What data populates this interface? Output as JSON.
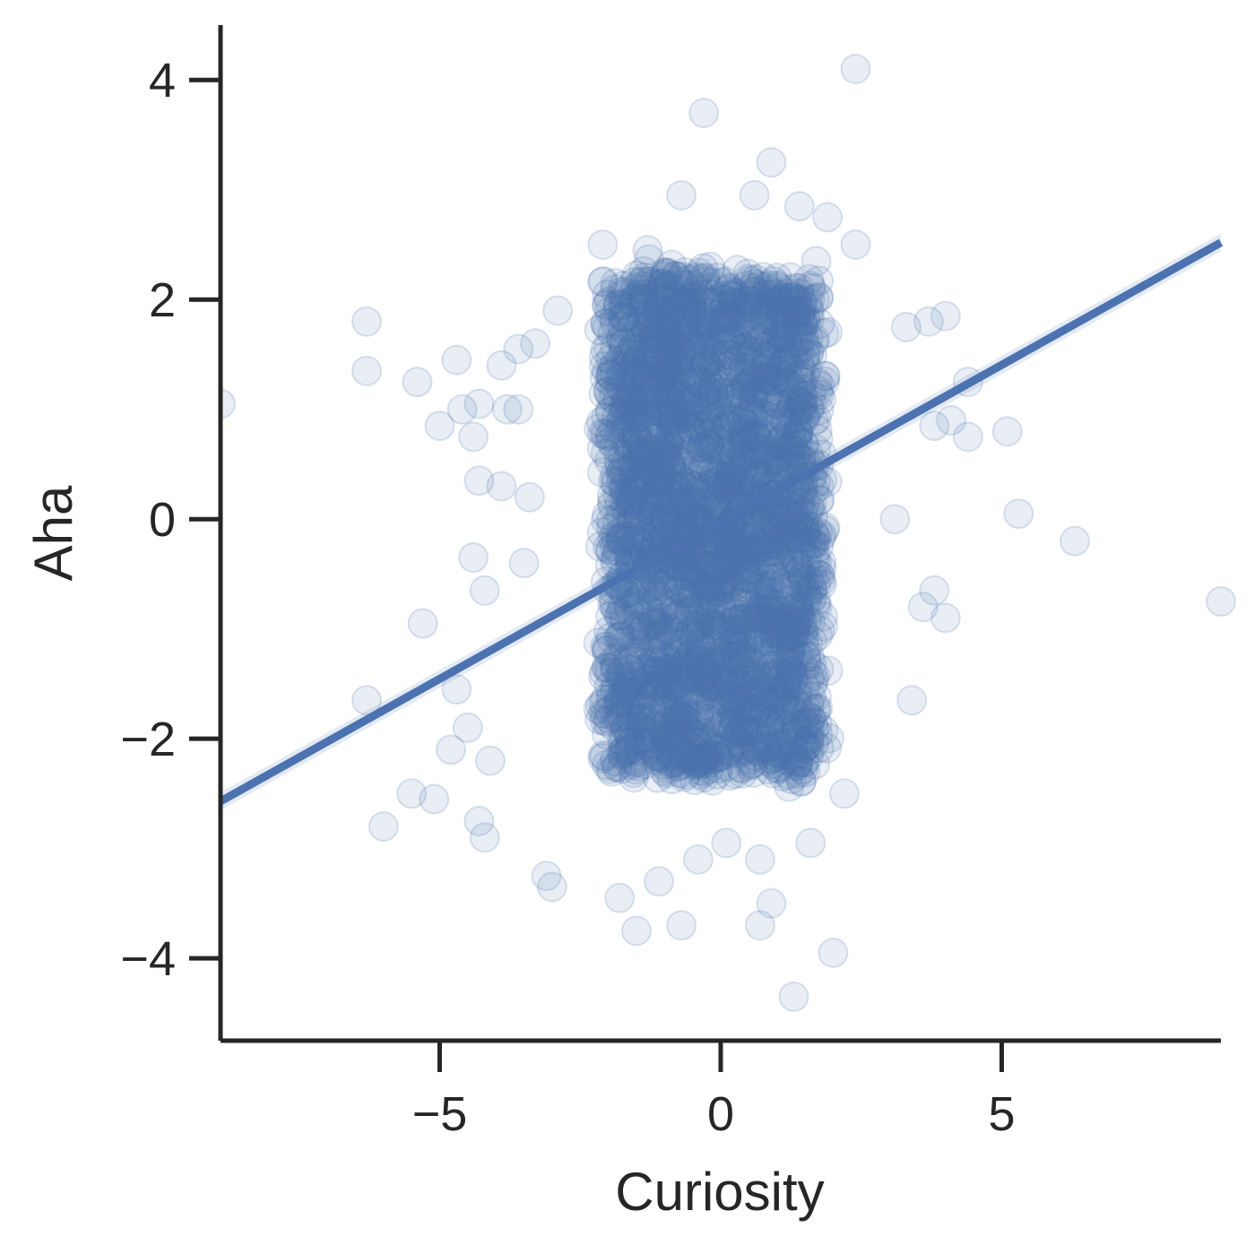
{
  "chart_data": {
    "type": "scatter",
    "title": "",
    "xlabel": "Curiosity",
    "ylabel": "Aha",
    "xlim": [
      -8.9,
      8.9
    ],
    "ylim": [
      -4.75,
      4.5
    ],
    "xticks": [
      -5,
      0,
      5
    ],
    "xtick_labels": [
      "−5",
      "0",
      "5"
    ],
    "yticks": [
      -4,
      -2,
      0,
      2,
      4
    ],
    "ytick_labels": [
      "−4",
      "−2",
      "0",
      "2",
      "4"
    ],
    "grid": false,
    "legend": "none",
    "colors": {
      "points": "#4c72b0",
      "line": "#4c72b0",
      "axes": "#262626"
    },
    "point_alpha": 0.12,
    "dense_cloud": {
      "x_center": -0.15,
      "x_half_width": 2.1,
      "y_range": [
        -2.3,
        2.2
      ],
      "approx_count": 3000
    },
    "series": [
      {
        "kind": "points",
        "sample_points": [
          [
            2.4,
            4.1
          ],
          [
            -0.3,
            3.7
          ],
          [
            0.9,
            3.25
          ],
          [
            -0.7,
            2.95
          ],
          [
            0.6,
            2.95
          ],
          [
            1.4,
            2.85
          ],
          [
            1.9,
            2.75
          ],
          [
            -2.1,
            2.5
          ],
          [
            -1.3,
            2.45
          ],
          [
            2.4,
            2.5
          ],
          [
            1.7,
            2.35
          ],
          [
            -6.3,
            1.8
          ],
          [
            -3.6,
            1.55
          ],
          [
            -3.3,
            1.6
          ],
          [
            -2.9,
            1.9
          ],
          [
            3.3,
            1.75
          ],
          [
            3.7,
            1.8
          ],
          [
            4.0,
            1.85
          ],
          [
            -6.3,
            1.35
          ],
          [
            -5.4,
            1.25
          ],
          [
            -4.7,
            1.45
          ],
          [
            -3.9,
            1.4
          ],
          [
            -8.9,
            1.05
          ],
          [
            -4.6,
            1.0
          ],
          [
            -4.3,
            1.05
          ],
          [
            -3.8,
            1.0
          ],
          [
            -3.6,
            1.0
          ],
          [
            -4.4,
            0.75
          ],
          [
            -5.0,
            0.85
          ],
          [
            4.4,
            1.25
          ],
          [
            3.8,
            0.85
          ],
          [
            4.1,
            0.9
          ],
          [
            5.1,
            0.8
          ],
          [
            4.4,
            0.75
          ],
          [
            -4.3,
            0.35
          ],
          [
            -3.9,
            0.3
          ],
          [
            -3.4,
            0.2
          ],
          [
            3.1,
            0.0
          ],
          [
            5.3,
            0.05
          ],
          [
            6.3,
            -0.2
          ],
          [
            8.9,
            -0.75
          ],
          [
            -4.4,
            -0.35
          ],
          [
            -3.5,
            -0.4
          ],
          [
            -4.2,
            -0.65
          ],
          [
            3.6,
            -0.8
          ],
          [
            3.8,
            -0.65
          ],
          [
            4.0,
            -0.9
          ],
          [
            -5.3,
            -0.95
          ],
          [
            -6.3,
            -1.65
          ],
          [
            -4.7,
            -1.55
          ],
          [
            3.4,
            -1.65
          ],
          [
            -4.5,
            -1.9
          ],
          [
            -4.8,
            -2.1
          ],
          [
            -4.1,
            -2.2
          ],
          [
            -5.5,
            -2.5
          ],
          [
            -5.1,
            -2.55
          ],
          [
            -6.0,
            -2.8
          ],
          [
            -4.3,
            -2.75
          ],
          [
            -4.2,
            -2.9
          ],
          [
            2.2,
            -2.5
          ],
          [
            1.6,
            -2.95
          ],
          [
            -3.0,
            -3.35
          ],
          [
            -3.1,
            -3.25
          ],
          [
            -1.8,
            -3.45
          ],
          [
            -1.5,
            -3.75
          ],
          [
            -0.7,
            -3.7
          ],
          [
            0.7,
            -3.7
          ],
          [
            0.9,
            -3.5
          ],
          [
            2.0,
            -3.95
          ],
          [
            1.3,
            -4.35
          ],
          [
            -0.4,
            -3.1
          ],
          [
            0.1,
            -2.95
          ],
          [
            0.7,
            -3.1
          ],
          [
            -1.1,
            -3.3
          ]
        ]
      },
      {
        "kind": "regression",
        "x": [
          -8.9,
          8.9
        ],
        "y": [
          -2.57,
          2.52
        ]
      }
    ]
  }
}
